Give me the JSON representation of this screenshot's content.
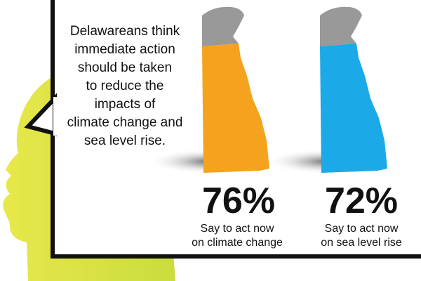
{
  "statement": [
    "Delawareans think",
    "immediate action",
    "should be taken",
    "to reduce the",
    "impacts of",
    "climate change and",
    "sea level rise."
  ],
  "items": [
    {
      "percent": "76%",
      "caption": [
        "Say to act now",
        "on climate change"
      ]
    },
    {
      "percent": "72%",
      "caption": [
        "Say to act now",
        "on sea level rise"
      ]
    }
  ]
}
